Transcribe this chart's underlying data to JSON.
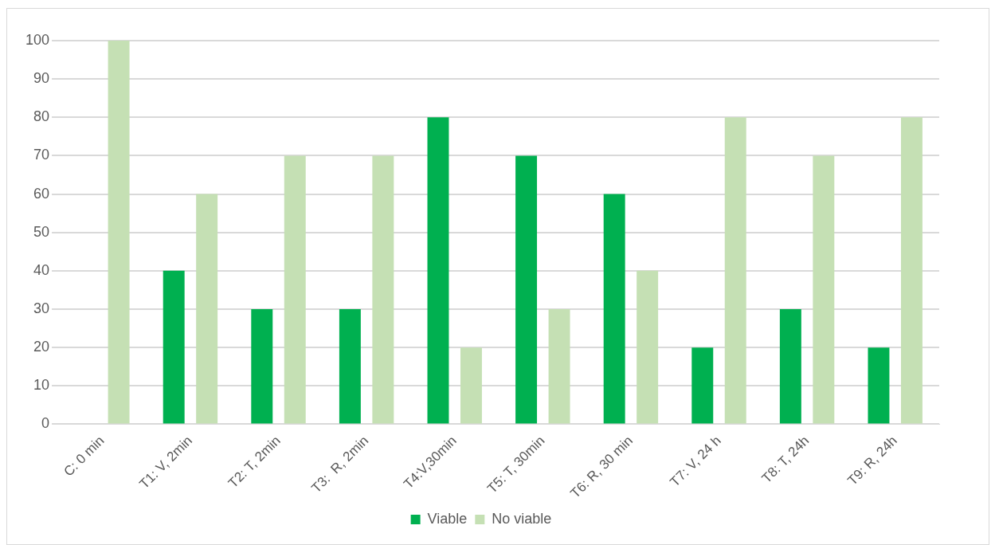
{
  "chart_data": {
    "type": "bar",
    "categories": [
      "C: 0 min",
      "T1: V, 2min",
      "T2: T, 2min",
      "T3:  R, 2min",
      "T4:V,30min",
      "T5: T, 30min",
      "T6: R, 30 min",
      "T7: V, 24 h",
      "T8: T, 24h",
      "T9: R, 24h"
    ],
    "series": [
      {
        "name": "Viable",
        "color": "#00b050",
        "values": [
          0,
          40,
          30,
          30,
          80,
          70,
          60,
          20,
          30,
          20
        ]
      },
      {
        "name": "No viable",
        "color": "#c5e0b4",
        "values": [
          100,
          60,
          70,
          70,
          20,
          30,
          40,
          80,
          70,
          80
        ]
      }
    ],
    "ylim": [
      0,
      100
    ],
    "yticks": [
      0,
      10,
      20,
      30,
      40,
      50,
      60,
      70,
      80,
      90,
      100
    ],
    "grid": "y",
    "legend": "bottom"
  }
}
